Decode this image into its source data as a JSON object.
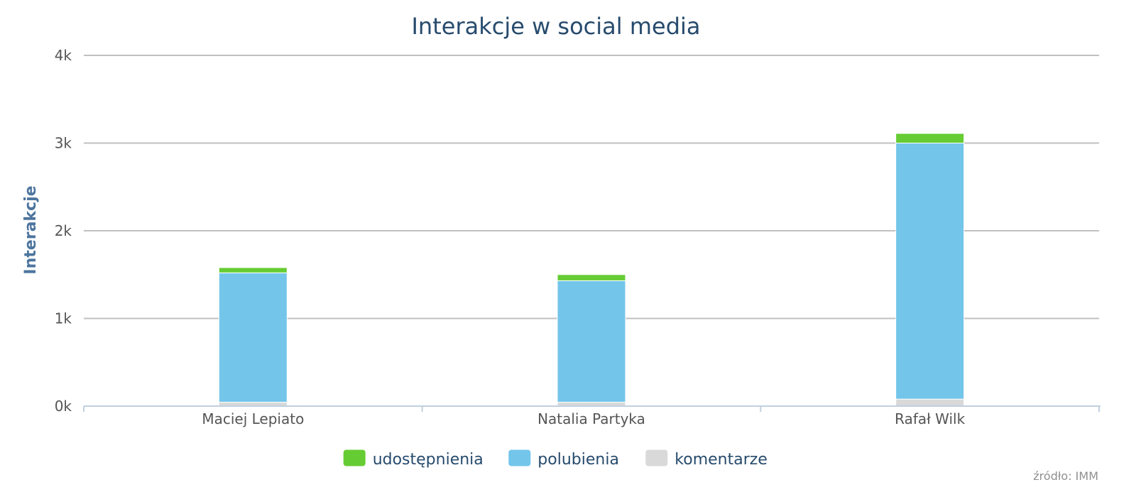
{
  "chart_data": {
    "type": "bar",
    "stacked": true,
    "title": "Interakcje w social media",
    "ylabel": "Interakcje",
    "xlabel": "",
    "ylim": [
      0,
      4000
    ],
    "yticks": [
      0,
      1000,
      2000,
      3000,
      4000
    ],
    "ytick_labels": [
      "0k",
      "1k",
      "2k",
      "3k",
      "4k"
    ],
    "categories": [
      "Maciej Lepiato",
      "Natalia Partyka",
      "Rafał Wilk"
    ],
    "series": [
      {
        "name": "komentarze",
        "color": "#d9d9d9",
        "values": [
          45,
          45,
          80
        ]
      },
      {
        "name": "polubienia",
        "color": "#73c5ea",
        "values": [
          1475,
          1385,
          2920
        ]
      },
      {
        "name": "udostępnienia",
        "color": "#66cc33",
        "values": [
          60,
          70,
          110
        ]
      }
    ],
    "legend_order": [
      "udostępnienia",
      "polubienia",
      "komentarze"
    ],
    "legend_position": "bottom-center",
    "grid": true,
    "credit": "źródło: IMM"
  }
}
